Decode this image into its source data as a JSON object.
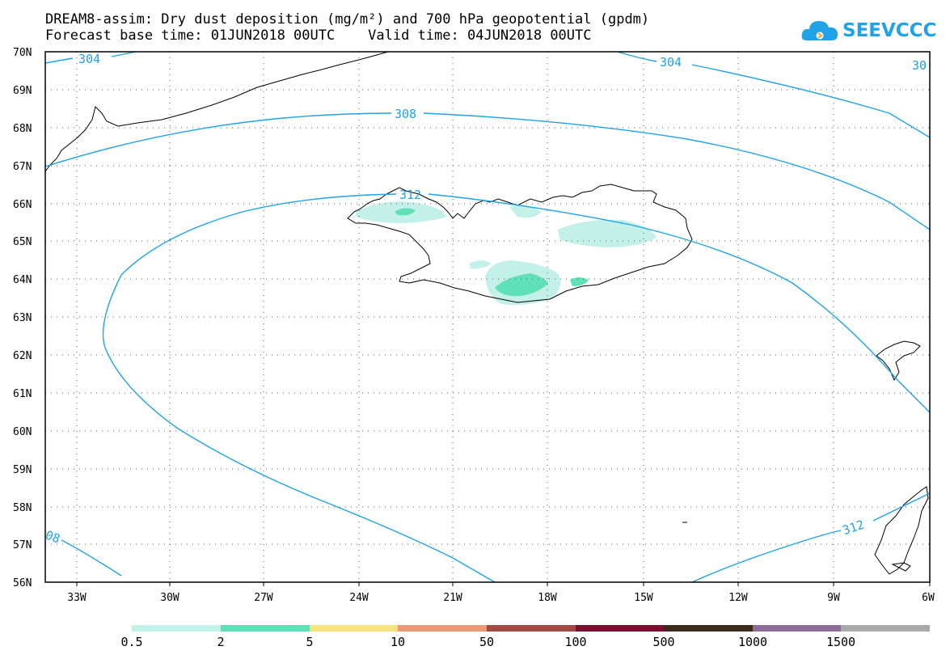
{
  "header": {
    "title_line1": "DREAM8-assim: Dry dust deposition (mg/m²) and 700 hPa geopotential (gpdm)",
    "title_line2": "Forecast base time: 01JUN2018 00UTC    Valid time: 04JUN2018 00UTC"
  },
  "logo": {
    "text": "SEEVCCC",
    "icon": "cloud-icon",
    "color": "#1fa3e6"
  },
  "map": {
    "lat_labels": [
      "70N",
      "69N",
      "68N",
      "67N",
      "66N",
      "65N",
      "64N",
      "63N",
      "62N",
      "61N",
      "60N",
      "59N",
      "58N",
      "57N",
      "56N"
    ],
    "lon_labels": [
      "33W",
      "30W",
      "27W",
      "24W",
      "21W",
      "18W",
      "15W",
      "12W",
      "9W",
      "6W"
    ],
    "contour_color": "#1fa3e6",
    "contour_labels": [
      "304",
      "304",
      "30",
      "308",
      "312",
      "312",
      "08"
    ]
  },
  "colorbar": {
    "colors": [
      "#c3f0e8",
      "#5fe0b7",
      "#f5e27b",
      "#ec9a73",
      "#a14a44",
      "#7b0f2f",
      "#3d2a1a",
      "#8c6d98",
      "#a8a8a8"
    ],
    "labels": [
      "0.5",
      "2",
      "5",
      "10",
      "50",
      "100",
      "500",
      "1000",
      "1500"
    ]
  }
}
